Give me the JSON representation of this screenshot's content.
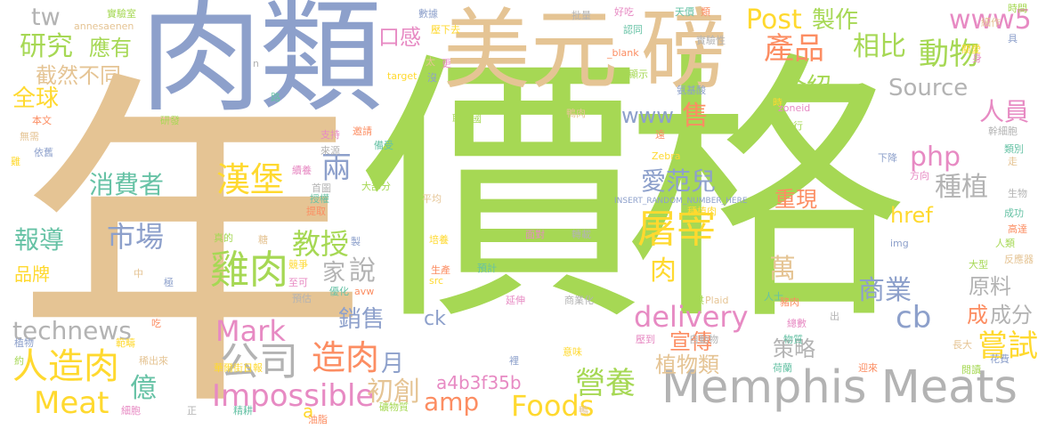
{
  "palette": {
    "green": "#a6d854",
    "tan": "#e5c494",
    "slate": "#8da0cb",
    "yellow": "#ffd92f",
    "pink": "#e78ac3",
    "gray": "#b3b3b3",
    "teal": "#66c2a5",
    "orange": "#fc8d62"
  },
  "words": [
    {
      "id": "w-price",
      "text": "價格",
      "color": "green"
    },
    {
      "id": "w-year",
      "text": "年",
      "color": "tan"
    },
    {
      "id": "w-meat",
      "text": "肉類",
      "color": "slate"
    },
    {
      "id": "w-usd",
      "text": "美元",
      "color": "tan"
    },
    {
      "id": "w-pound",
      "text": "磅",
      "color": "tan"
    },
    {
      "id": "w-memphis",
      "text": "Memphis Meats",
      "color": "gray"
    },
    {
      "id": "w-research",
      "text": "研究",
      "color": "green"
    },
    {
      "id": "w-should",
      "text": "應有",
      "color": "green"
    },
    {
      "id": "w-tw",
      "text": "tw",
      "color": "gray"
    },
    {
      "id": "w-distinct",
      "text": "截然不同",
      "color": "tan"
    },
    {
      "id": "w-global",
      "text": "全球",
      "color": "yellow"
    },
    {
      "id": "w-consumer",
      "text": "消費者",
      "color": "teal"
    },
    {
      "id": "w-report",
      "text": "報導",
      "color": "teal"
    },
    {
      "id": "w-brand",
      "text": "品牌",
      "color": "yellow"
    },
    {
      "id": "w-technews",
      "text": "technews",
      "color": "gray"
    },
    {
      "id": "w-artmeat",
      "text": "人造肉",
      "color": "yellow"
    },
    {
      "id": "w-meat-en",
      "text": "Meat",
      "color": "yellow"
    },
    {
      "id": "w-burger",
      "text": "漢堡",
      "color": "yellow"
    },
    {
      "id": "w-two",
      "text": "兩",
      "color": "slate"
    },
    {
      "id": "w-chicken",
      "text": "雞肉",
      "color": "green"
    },
    {
      "id": "w-market",
      "text": "市場",
      "color": "slate"
    },
    {
      "id": "w-prof",
      "text": "教授",
      "color": "green"
    },
    {
      "id": "w-home",
      "text": "家",
      "color": "gray"
    },
    {
      "id": "w-say",
      "text": "說",
      "color": "gray"
    },
    {
      "id": "w-company",
      "text": "公司",
      "color": "gray"
    },
    {
      "id": "w-mark",
      "text": "Mark",
      "color": "pink"
    },
    {
      "id": "w-billion",
      "text": "億",
      "color": "teal"
    },
    {
      "id": "w-impossible",
      "text": "Impossible",
      "color": "pink"
    },
    {
      "id": "w-a",
      "text": "a",
      "color": "yellow"
    },
    {
      "id": "w-make",
      "text": "造肉",
      "color": "orange"
    },
    {
      "id": "w-sales",
      "text": "銷售",
      "color": "slate"
    },
    {
      "id": "w-startup",
      "text": "初創",
      "color": "tan"
    },
    {
      "id": "w-a4b",
      "text": "a4b3f35b",
      "color": "pink"
    },
    {
      "id": "w-amp",
      "text": "amp",
      "color": "orange"
    },
    {
      "id": "w-month",
      "text": "月",
      "color": "slate"
    },
    {
      "id": "w-foods",
      "text": "Foods",
      "color": "yellow"
    },
    {
      "id": "w-nutr",
      "text": "營養",
      "color": "green"
    },
    {
      "id": "w-ck",
      "text": "ck",
      "color": "slate"
    },
    {
      "id": "w-taste",
      "text": "口感",
      "color": "pink"
    },
    {
      "id": "w-post",
      "text": "Post",
      "color": "yellow"
    },
    {
      "id": "w-produce",
      "text": "製作",
      "color": "green"
    },
    {
      "id": "w-product",
      "text": "產品",
      "color": "orange"
    },
    {
      "id": "w-compare",
      "text": "相比",
      "color": "green"
    },
    {
      "id": "w-animal",
      "text": "動物",
      "color": "green"
    },
    {
      "id": "w-www5",
      "text": "www5",
      "color": "pink"
    },
    {
      "id": "w-intro",
      "text": "介紹",
      "color": "green"
    },
    {
      "id": "w-source",
      "text": "Source",
      "color": "gray"
    },
    {
      "id": "w-staff",
      "text": "人員",
      "color": "pink"
    },
    {
      "id": "w-www",
      "text": "www",
      "color": "slate"
    },
    {
      "id": "w-sell",
      "text": "售",
      "color": "orange"
    },
    {
      "id": "w-php",
      "text": "php",
      "color": "pink"
    },
    {
      "id": "w-avon",
      "text": "愛范兒",
      "color": "slate"
    },
    {
      "id": "w-plant",
      "text": "種植",
      "color": "gray"
    },
    {
      "id": "w-reproduce",
      "text": "重現",
      "color": "orange"
    },
    {
      "id": "w-href",
      "text": "href",
      "color": "yellow"
    },
    {
      "id": "w-slaughter",
      "text": "屠宰",
      "color": "yellow"
    },
    {
      "id": "w-meat1",
      "text": "肉",
      "color": "yellow"
    },
    {
      "id": "w-wan",
      "text": "萬",
      "color": "tan"
    },
    {
      "id": "w-commerce",
      "text": "商業",
      "color": "slate"
    },
    {
      "id": "w-material",
      "text": "原料",
      "color": "gray"
    },
    {
      "id": "w-delivery",
      "text": "delivery",
      "color": "pink"
    },
    {
      "id": "w-cb",
      "text": "cb",
      "color": "slate"
    },
    {
      "id": "w-become",
      "text": "成",
      "color": "orange"
    },
    {
      "id": "w-ingredient",
      "text": "成分",
      "color": "gray"
    },
    {
      "id": "w-promote",
      "text": "宣傳",
      "color": "orange"
    },
    {
      "id": "w-strategy",
      "text": "策略",
      "color": "gray"
    },
    {
      "id": "w-plantkind",
      "text": "植物類",
      "color": "tan"
    },
    {
      "id": "w-try",
      "text": "嘗試",
      "color": "yellow"
    }
  ],
  "small_words": [
    "實驗室",
    "annesaenen",
    "數據",
    "壓下去",
    "好吃",
    "批量",
    "天價",
    "類",
    "時間",
    "細作",
    "具",
    "關愛",
    "身",
    "實驗性",
    "認同",
    "_blank",
    "顯示",
    "太",
    "沒",
    "target",
    "更",
    "n",
    "路",
    "邀請",
    "聯合國",
    "鴨肉",
    "氨基酸",
    "時",
    "zoneid",
    "幹細胞",
    "類別",
    "本文",
    "研發",
    "無需",
    "依舊",
    "雞",
    "支持",
    "來源",
    "備受",
    "遠",
    "排行",
    "走",
    "下降",
    "Zebra",
    "續養",
    "首圖",
    "授權",
    "提取",
    "大部分",
    "平均",
    "INSERT_RANDOM_NUMBER_HERE",
    "種植肉",
    "方向",
    "生物",
    "成功",
    "高達",
    "人類",
    "反應器",
    "img",
    "培養",
    "面對",
    "轉載",
    "預計",
    "生產",
    "真的",
    "糖",
    "製",
    "競爭",
    "至可",
    "預估",
    "優化",
    "avw",
    "大型",
    "中",
    "極",
    "src",
    "延伸",
    "商業化",
    "人士",
    "豬肉",
    "供",
    "Plaid",
    "植物",
    "範疇",
    "總數",
    "出",
    "物質",
    "吃",
    "約",
    "稀出來",
    "裡",
    "意味",
    "壓到",
    "自動物",
    "荷蘭",
    "迎來",
    "閱讀",
    "長大",
    "花費",
    "華爾街日報",
    "細胞",
    "正",
    "精耕",
    "油脂",
    "礦物質",
    "鴨"
  ]
}
